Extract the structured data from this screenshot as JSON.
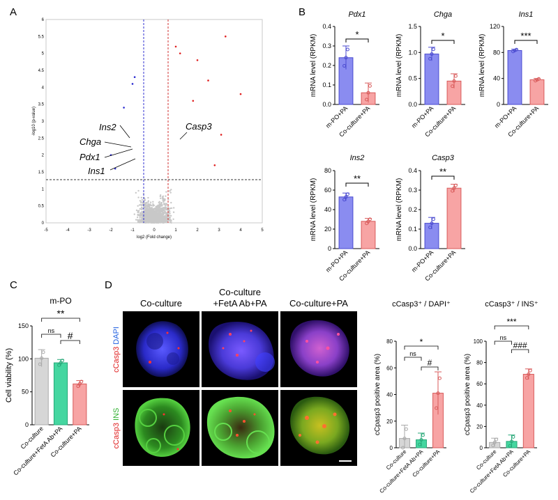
{
  "panels": {
    "A": "A",
    "B": "B",
    "C": "C",
    "D": "D"
  },
  "colors": {
    "blue": "#8a8cf0",
    "red": "#f7a4a4",
    "gray": "#d6d6d6",
    "green": "#45d6a0"
  },
  "chart_data": [
    {
      "type": "scatter",
      "id": "volcano",
      "title": "",
      "xlabel": "log2 (Fold change)",
      "ylabel": "-log10 (p-value)",
      "xlim": [
        -5,
        5
      ],
      "ylim": [
        0,
        6
      ],
      "x_ticks": [
        "-5",
        "-4",
        "-3",
        "-2",
        "-1",
        "0",
        "1",
        "2",
        "3",
        "4",
        "5"
      ],
      "y_ticks": [
        "0",
        "0.5",
        "1",
        "1.5",
        "2",
        "2.5",
        "3",
        "3.5",
        "4",
        "4.5",
        "5",
        "5.5",
        "6"
      ],
      "thresholds": {
        "fc": [
          -0.6,
          0.6
        ],
        "p": 1.3
      },
      "annotations": [
        {
          "text": "Ins2",
          "x": -1.2,
          "y": 2.7
        },
        {
          "text": "Chga",
          "x": -0.9,
          "y": 2.3
        },
        {
          "text": "Pdx1",
          "x": -0.9,
          "y": 2.05
        },
        {
          "text": "Ins1",
          "x": -0.8,
          "y": 1.7
        },
        {
          "text": "Casp3",
          "x": 1.0,
          "y": 2.9
        }
      ]
    },
    {
      "type": "bar",
      "id": "pdx1",
      "title": "Pdx1",
      "ylabel": "mRNA level (RPKM)",
      "categories": [
        "m-PO+PA",
        "Co-culture+PA"
      ],
      "values": [
        0.24,
        0.06
      ],
      "errors": [
        0.06,
        0.05
      ],
      "ylim": [
        0,
        0.4
      ],
      "y_ticks": [
        "0.0",
        "0.1",
        "0.2",
        "0.3",
        "0.4"
      ],
      "sig": "*"
    },
    {
      "type": "bar",
      "id": "chga",
      "title": "Chga",
      "ylabel": "mRNA level (RPKM)",
      "categories": [
        "m-PO+PA",
        "Co-culture+PA"
      ],
      "values": [
        0.97,
        0.45
      ],
      "errors": [
        0.13,
        0.14
      ],
      "ylim": [
        0,
        1.5
      ],
      "y_ticks": [
        "0.0",
        "0.5",
        "1.0",
        "1.5"
      ],
      "sig": "*"
    },
    {
      "type": "bar",
      "id": "ins1",
      "title": "Ins1",
      "ylabel": "mRNA level (RPKM)",
      "categories": [
        "m-PO+PA",
        "Co-culture+PA"
      ],
      "values": [
        83,
        38
      ],
      "errors": [
        2,
        2
      ],
      "ylim": [
        0,
        120
      ],
      "y_ticks": [
        "0",
        "40",
        "80",
        "120"
      ],
      "sig": "***"
    },
    {
      "type": "bar",
      "id": "ins2",
      "title": "Ins2",
      "ylabel": "mRNA level (RPKM)",
      "categories": [
        "m-PO+PA",
        "Co-culture+PA"
      ],
      "values": [
        53,
        28
      ],
      "errors": [
        4,
        3
      ],
      "ylim": [
        0,
        80
      ],
      "y_ticks": [
        "0",
        "20",
        "40",
        "60",
        "80"
      ],
      "sig": "**"
    },
    {
      "type": "bar",
      "id": "casp3",
      "title": "Casp3",
      "ylabel": "mRNA level (RPKM)",
      "categories": [
        "m-PO+PA",
        "Co-culture+PA"
      ],
      "values": [
        0.13,
        0.31
      ],
      "errors": [
        0.03,
        0.02
      ],
      "ylim": [
        0,
        0.4
      ],
      "y_ticks": [
        "0.0",
        "0.1",
        "0.2",
        "0.3",
        "0.4"
      ],
      "sig": "**"
    },
    {
      "type": "bar",
      "id": "viability",
      "title": "m-PO",
      "ylabel": "Cell viability (%)",
      "categories": [
        "Co-culture",
        "Co-culture+FetA Ab+PA",
        "Co-culture+PA"
      ],
      "values": [
        101,
        94,
        62
      ],
      "errors": [
        13,
        5,
        5
      ],
      "ylim": [
        0,
        150
      ],
      "y_ticks": [
        "0",
        "50",
        "100",
        "150"
      ],
      "sigs": [
        {
          "from": 0,
          "to": 2,
          "text": "**"
        },
        {
          "from": 0,
          "to": 1,
          "text": "ns"
        },
        {
          "from": 1,
          "to": 2,
          "text": "#"
        }
      ]
    },
    {
      "type": "bar",
      "id": "dapi",
      "title": "cCasp3⁺ / DAPI⁺",
      "ylabel": "cCpasp3 positive area (%)",
      "categories": [
        "Co-culture",
        "Co-culture+FetA Ab+PA",
        "Co-culture+PA"
      ],
      "values": [
        7,
        6,
        41
      ],
      "errors": [
        10,
        5,
        16
      ],
      "ylim": [
        0,
        80
      ],
      "y_ticks": [
        "0",
        "20",
        "40",
        "60",
        "80"
      ],
      "sigs": [
        {
          "from": 0,
          "to": 2,
          "text": "*"
        },
        {
          "from": 0,
          "to": 1,
          "text": "ns"
        },
        {
          "from": 1,
          "to": 2,
          "text": "#"
        }
      ]
    },
    {
      "type": "bar",
      "id": "ins",
      "title": "cCasp3⁺ / INS⁺",
      "ylabel": "cCpasp3 positive area (%)",
      "categories": [
        "Co-culture",
        "Co-culture+FetA Ab+PA",
        "Co-culture+PA"
      ],
      "values": [
        5,
        6,
        69
      ],
      "errors": [
        4,
        6,
        5
      ],
      "ylim": [
        0,
        100
      ],
      "y_ticks": [
        "0",
        "20",
        "40",
        "60",
        "80",
        "100"
      ],
      "sigs": [
        {
          "from": 0,
          "to": 2,
          "text": "***"
        },
        {
          "from": 0,
          "to": 1,
          "text": "ns"
        },
        {
          "from": 1,
          "to": 2,
          "text": "###"
        }
      ]
    }
  ],
  "micrograph": {
    "columns": [
      "Co-culture",
      "Co-culture\n+FetA Ab+PA",
      "Co-culture+PA"
    ],
    "row1_label": {
      "a": "cCasp3",
      "b": "DAPI"
    },
    "row2_label": {
      "a": "cCasp3",
      "b": "INS"
    }
  }
}
